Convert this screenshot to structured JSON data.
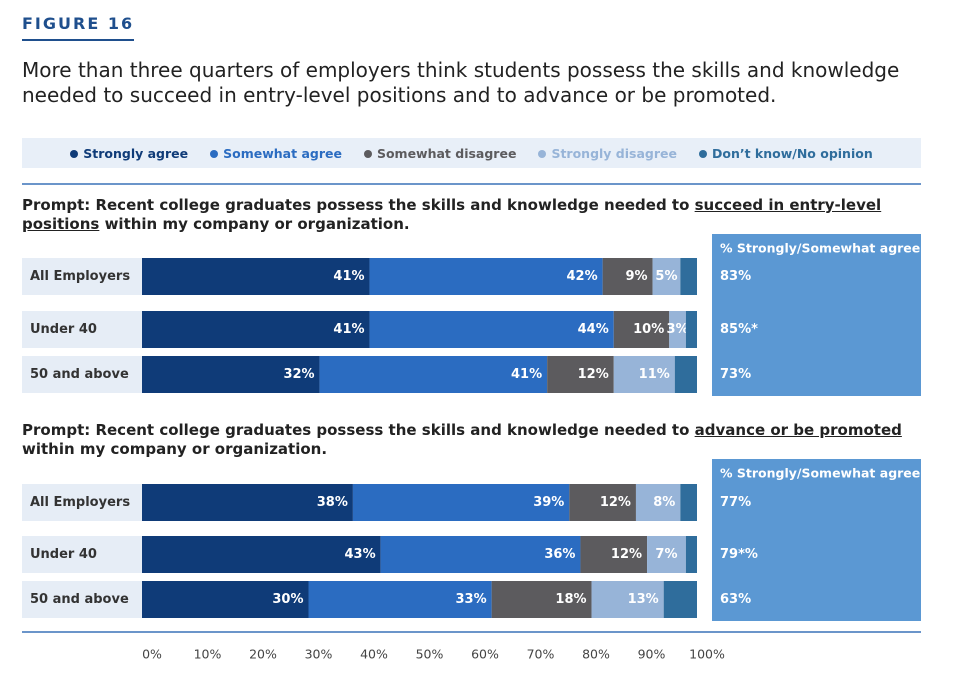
{
  "figure_label": "FIGURE 16",
  "headline": "More than three quarters of employers think students possess the skills and knowledge needed to succeed in entry-level positions and to advance or be promoted.",
  "chart_data": {
    "type": "bar",
    "stacked": true,
    "orientation": "horizontal",
    "legend": [
      {
        "name": "Strongly agree",
        "color": "#0f3b78"
      },
      {
        "name": "Somewhat agree",
        "color": "#2b6cc1"
      },
      {
        "name": "Somewhat disagree",
        "color": "#5c5b5e"
      },
      {
        "name": "Strongly disagree",
        "color": "#97b4d8"
      },
      {
        "name": "Don’t know/No opinion",
        "color": "#2f6d9c"
      }
    ],
    "xlim": [
      0,
      100
    ],
    "xticks": [
      {
        "value": 0,
        "label": "0%"
      },
      {
        "value": 10,
        "label": "10%"
      },
      {
        "value": 20,
        "label": "20%"
      },
      {
        "value": 30,
        "label": "30%"
      },
      {
        "value": 40,
        "label": "40%"
      },
      {
        "value": 50,
        "label": "50%"
      },
      {
        "value": 60,
        "label": "60%"
      },
      {
        "value": 70,
        "label": "70%"
      },
      {
        "value": 80,
        "label": "80%"
      },
      {
        "value": 90,
        "label": "90%"
      },
      {
        "value": 100,
        "label": "100%"
      }
    ],
    "panels": [
      {
        "prompt_before": "Prompt: Recent college graduates possess the skills and knowledge needed to ",
        "prompt_underlined": "succeed in entry-level positions",
        "prompt_after": " within my company or organization.",
        "categories": [
          "All Employers",
          "Under 40",
          "50 and above"
        ],
        "series": [
          {
            "values": [
              41,
              41,
              32
            ],
            "value_labels": [
              "41%",
              "41%",
              "32%"
            ]
          },
          {
            "values": [
              42,
              44,
              41
            ],
            "value_labels": [
              "42%",
              "44%",
              "41%"
            ]
          },
          {
            "values": [
              9,
              10,
              12
            ],
            "value_labels": [
              "9%",
              "10%",
              "12%"
            ]
          },
          {
            "values": [
              5,
              3,
              11
            ],
            "value_labels": [
              "5%",
              "3%",
              "11%"
            ]
          },
          {
            "values": [
              3,
              2,
              4
            ],
            "value_labels": [
              null,
              null,
              null
            ]
          }
        ],
        "summary_header": "% Strongly/Somewhat agree",
        "summary_values": [
          83,
          85,
          73
        ],
        "summary_labels": [
          "83%",
          "85%*",
          "73%"
        ]
      },
      {
        "prompt_before": "Prompt: Recent college graduates possess the skills and knowledge needed to ",
        "prompt_underlined": "advance or be promoted",
        "prompt_after": " within my company or organization.",
        "categories": [
          "All Employers",
          "Under 40",
          "50 and above"
        ],
        "series": [
          {
            "values": [
              38,
              43,
              30
            ],
            "value_labels": [
              "38%",
              "43%",
              "30%"
            ]
          },
          {
            "values": [
              39,
              36,
              33
            ],
            "value_labels": [
              "39%",
              "36%",
              "33%"
            ]
          },
          {
            "values": [
              12,
              12,
              18
            ],
            "value_labels": [
              "12%",
              "12%",
              "18%"
            ]
          },
          {
            "values": [
              8,
              7,
              13
            ],
            "value_labels": [
              "8%",
              "7%",
              "13%"
            ]
          },
          {
            "values": [
              3,
              2,
              6
            ],
            "value_labels": [
              null,
              null,
              null
            ]
          }
        ],
        "summary_header": "% Strongly/Somewhat agree",
        "summary_values": [
          77,
          79,
          63
        ],
        "summary_labels": [
          "77%",
          "79*%",
          "63%"
        ]
      }
    ]
  }
}
